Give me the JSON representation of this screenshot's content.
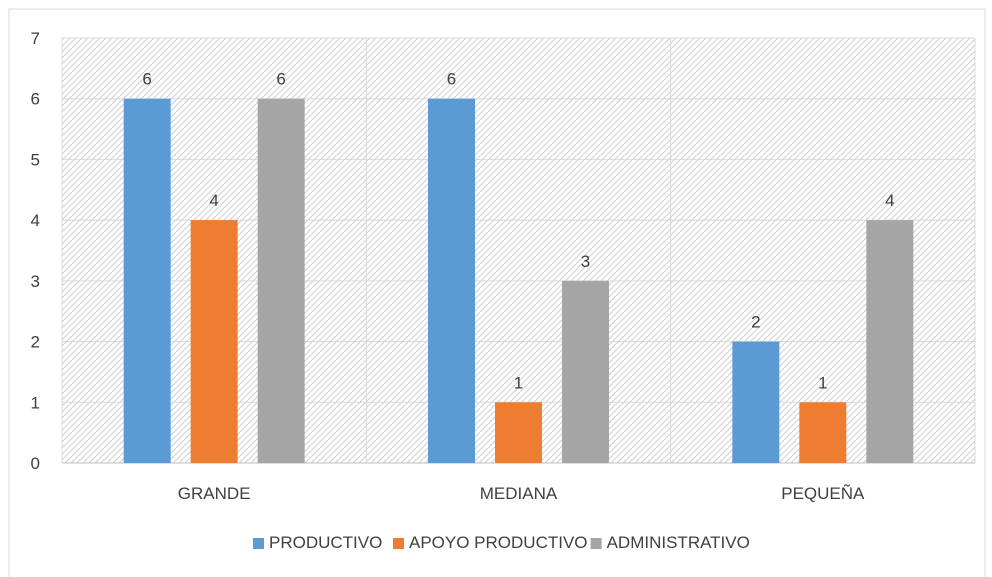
{
  "chart_data": {
    "type": "bar",
    "title": "",
    "xlabel": "",
    "ylabel": "",
    "categories": [
      "GRANDE",
      "MEDIANA",
      "PEQUEÑA"
    ],
    "series": [
      {
        "name": "PRODUCTIVO",
        "values": [
          6,
          6,
          2
        ],
        "color": "#5B9BD5"
      },
      {
        "name": "APOYO PRODUCTIVO",
        "values": [
          4,
          1,
          1
        ],
        "color": "#ED7D31"
      },
      {
        "name": "ADMINISTRATIVO",
        "values": [
          6,
          3,
          4
        ],
        "color": "#A5A5A5"
      }
    ],
    "ylim": [
      0,
      7
    ],
    "yticks": [
      0,
      1,
      2,
      3,
      4,
      5,
      6,
      7
    ],
    "grid": true,
    "legend_position": "bottom"
  }
}
